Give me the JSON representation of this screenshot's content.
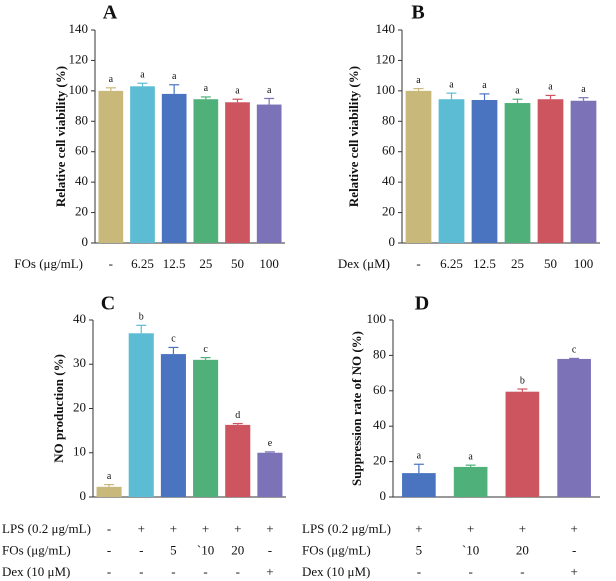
{
  "chart_data": [
    {
      "type": "bar",
      "title": "A",
      "y_label": "Relative cell viability (%)",
      "x_label": "FOs (μg/mL)",
      "categories": [
        "-",
        "6.25",
        "12.5",
        "25",
        "50",
        "100"
      ],
      "values": [
        100,
        103,
        98,
        94.5,
        92.5,
        91
      ],
      "errors": [
        2,
        2,
        6,
        1.5,
        2,
        4
      ],
      "letters": [
        "a",
        "a",
        "a",
        "a",
        "a",
        "a"
      ],
      "colors": [
        "#c8b97a",
        "#5bbcd4",
        "#4a74c0",
        "#4fb07a",
        "#cc5560",
        "#7b72b8"
      ],
      "ylim": [
        0,
        140
      ],
      "yticks": [
        0,
        20,
        40,
        60,
        80,
        100,
        120,
        140
      ]
    },
    {
      "type": "bar",
      "title": "B",
      "y_label": "Relative cell viability (%)",
      "x_label": "Dex (μM)",
      "categories": [
        "-",
        "6.25",
        "12.5",
        "25",
        "50",
        "100"
      ],
      "values": [
        100,
        94.5,
        94,
        92,
        94.5,
        93.5
      ],
      "errors": [
        1.5,
        4,
        4,
        2.5,
        2.5,
        2
      ],
      "letters": [
        "a",
        "a",
        "a",
        "a",
        "a",
        "a"
      ],
      "colors": [
        "#c8b97a",
        "#5bbcd4",
        "#4a74c0",
        "#4fb07a",
        "#cc5560",
        "#7b72b8"
      ],
      "ylim": [
        0,
        140
      ],
      "yticks": [
        0,
        20,
        40,
        60,
        80,
        100,
        120,
        140
      ]
    },
    {
      "type": "bar",
      "title": "C",
      "y_label": "NO production (%)",
      "values": [
        2.3,
        37,
        32.3,
        31,
        16.3,
        10
      ],
      "errors": [
        0.5,
        1.8,
        1.5,
        0.5,
        0.3,
        0.2
      ],
      "letters": [
        "a",
        "b",
        "c",
        "c",
        "d",
        "e"
      ],
      "colors": [
        "#c8b97a",
        "#5bbcd4",
        "#4a74c0",
        "#4fb07a",
        "#cc5560",
        "#7b72b8"
      ],
      "ylim": [
        0,
        40
      ],
      "yticks": [
        0,
        10,
        20,
        30,
        40
      ],
      "rows": [
        {
          "label": "LPS (0.2 μg/mL)",
          "values": [
            "-",
            "+",
            "+",
            "+",
            "+",
            "+"
          ]
        },
        {
          "label": "FOs (μg/mL)",
          "values": [
            "-",
            "-",
            "5",
            "`10",
            "20",
            "-"
          ]
        },
        {
          "label": "Dex (10 μM)",
          "values": [
            "-",
            "-",
            "-",
            "-",
            "-",
            "+"
          ]
        }
      ]
    },
    {
      "type": "bar",
      "title": "D",
      "y_label": "Suppression rate of NO (%)",
      "values": [
        13.5,
        17,
        59.5,
        78
      ],
      "errors": [
        5,
        1,
        1.5,
        0.3
      ],
      "letters": [
        "a",
        "a",
        "b",
        "c"
      ],
      "colors": [
        "#4a74c0",
        "#4fb07a",
        "#cc5560",
        "#7b72b8"
      ],
      "ylim": [
        0,
        100
      ],
      "yticks": [
        0,
        20,
        40,
        60,
        80,
        100
      ],
      "rows": [
        {
          "label": "LPS (0.2 μg/mL)",
          "values": [
            "+",
            "+",
            "+",
            "+"
          ]
        },
        {
          "label": "FOs (μg/mL)",
          "values": [
            "5",
            "`10",
            "20",
            "-"
          ]
        },
        {
          "label": "Dex (10 μM)",
          "values": [
            "-",
            "-",
            "-",
            "+"
          ]
        }
      ]
    }
  ]
}
